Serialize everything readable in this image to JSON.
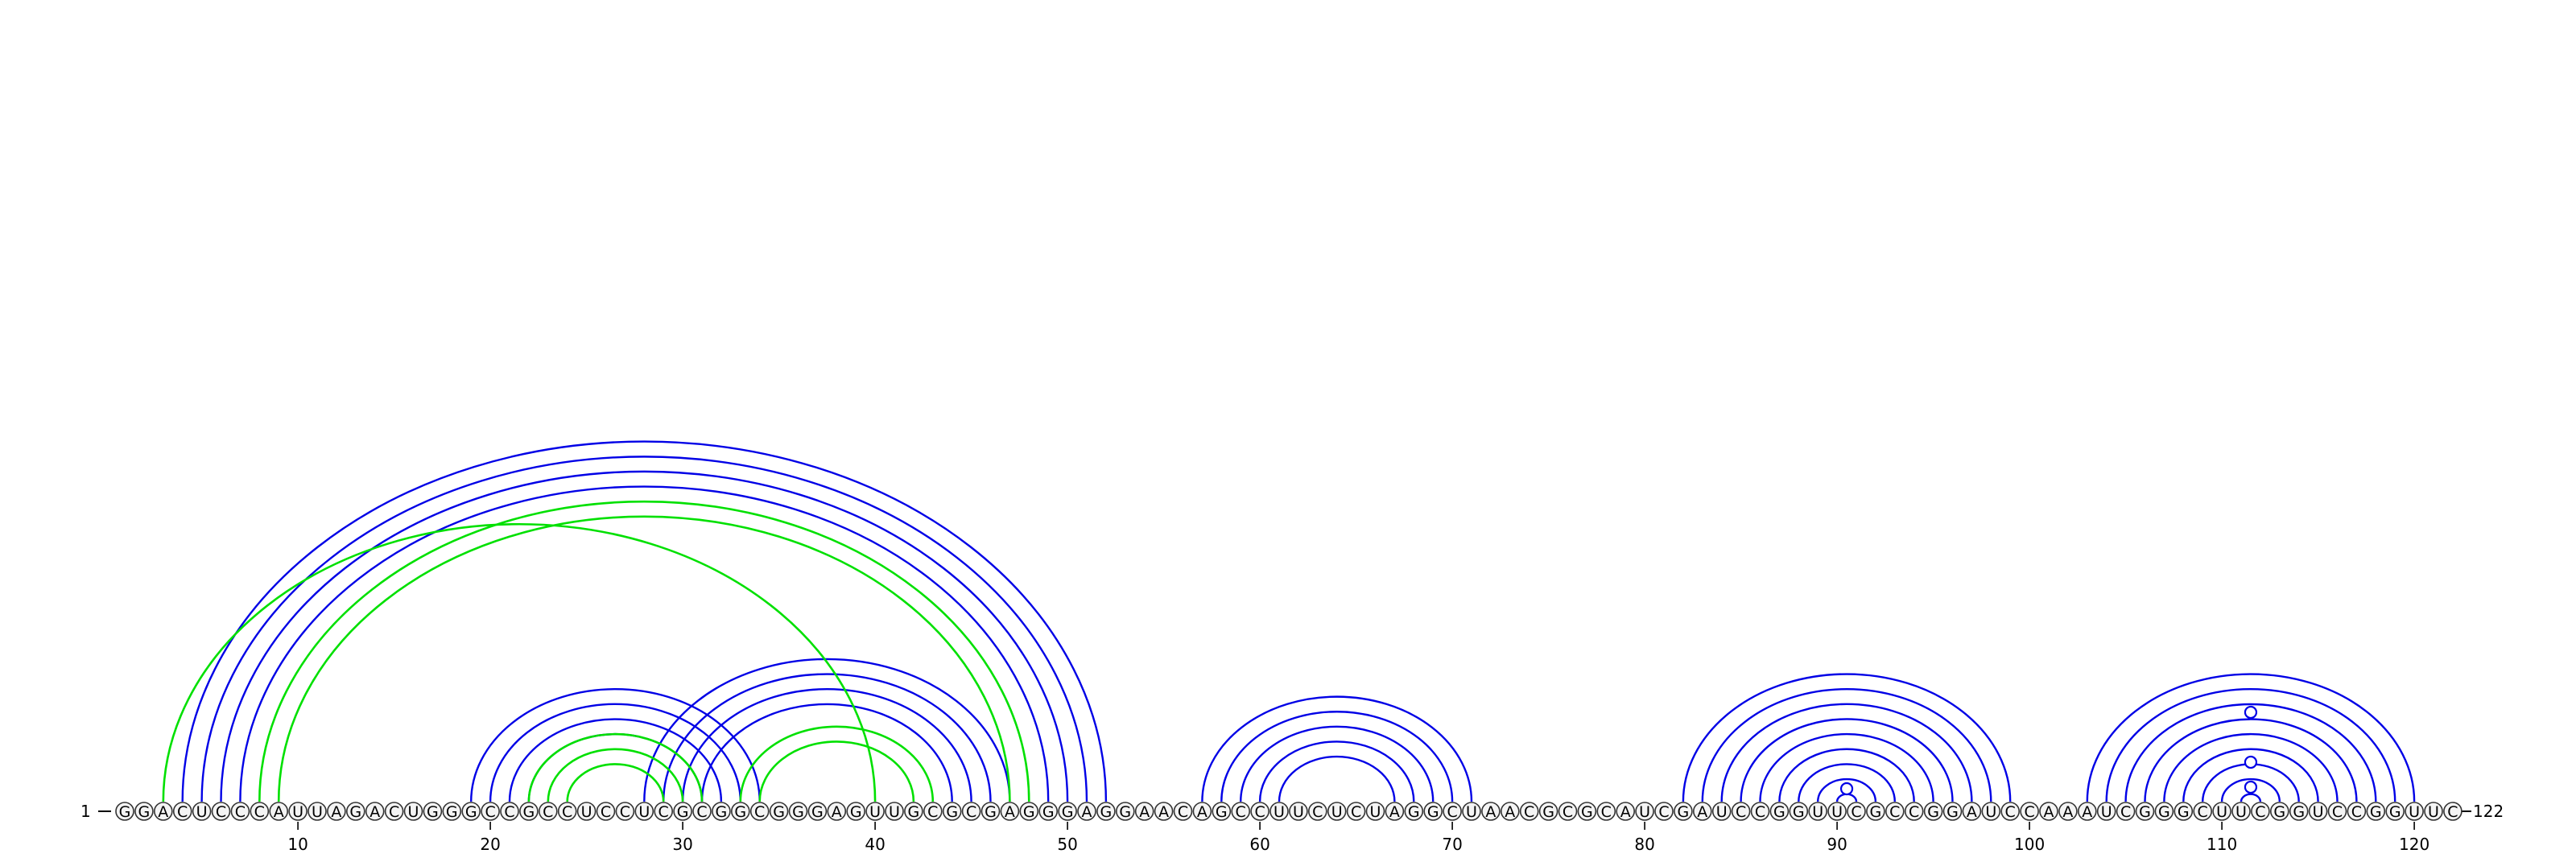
{
  "diagram": {
    "sequence": "GGACUCCCAUUAGACUGGGCCGCCUCCUCGCGGCGGGAGUUGCGCGAGGGAGGAACAGCCUUCUCUAGGCUAACGCGCAUCGAUCCGGUUCGCCGGAUCCAAAUCGGGCUUCGGUCCGGUUC",
    "start_label": "1",
    "end_label": "122",
    "tick_labels": [
      "10",
      "20",
      "30",
      "40",
      "50",
      "60",
      "70",
      "80",
      "90",
      "100",
      "110",
      "120"
    ],
    "colors": {
      "blue_arc": "#0000e6",
      "green_arc": "#00e000",
      "nucleotide_stroke": "#333333",
      "nucleotide_fill": "#f4f4f4",
      "text": "#000000"
    },
    "blue_pairs": [
      [
        4,
        52
      ],
      [
        5,
        51
      ],
      [
        6,
        50
      ],
      [
        7,
        49
      ],
      [
        19,
        34
      ],
      [
        20,
        33
      ],
      [
        21,
        32
      ],
      [
        22,
        31
      ],
      [
        28,
        47
      ],
      [
        29,
        46
      ],
      [
        30,
        45
      ],
      [
        31,
        44
      ],
      [
        57,
        71
      ],
      [
        58,
        70
      ],
      [
        59,
        69
      ],
      [
        60,
        68
      ],
      [
        61,
        67
      ],
      [
        82,
        99
      ],
      [
        83,
        98
      ],
      [
        84,
        97
      ],
      [
        85,
        96
      ],
      [
        86,
        95
      ],
      [
        87,
        94
      ],
      [
        88,
        93
      ],
      [
        89,
        92
      ],
      [
        90,
        91
      ],
      [
        103,
        120
      ],
      [
        104,
        119
      ],
      [
        105,
        118
      ],
      [
        106,
        117
      ],
      [
        107,
        116
      ],
      [
        108,
        115
      ],
      [
        109,
        114
      ],
      [
        110,
        113
      ],
      [
        111,
        112
      ]
    ],
    "green_pairs": [
      [
        3,
        40
      ],
      [
        8,
        48
      ],
      [
        9,
        47
      ],
      [
        22,
        31
      ],
      [
        23,
        30
      ],
      [
        24,
        29
      ],
      [
        33,
        43
      ],
      [
        34,
        42
      ]
    ],
    "circle_markers": [
      90.5,
      111.5,
      111.5,
      111.5
    ]
  }
}
